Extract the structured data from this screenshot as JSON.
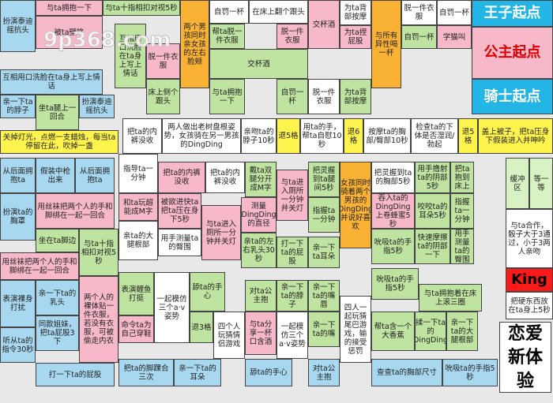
{
  "watermark": "9p368.com",
  "title": "恋爱新体验",
  "cells": [
    "扮演泰迪摇抗头",
    "与ta拥抱一下",
    "与ta十指相扣对视5秒",
    "被ta壁咚",
    "两个男孩同时亲女孩的左右脸颊",
    "自罚一杯",
    "在床上翻个跟头",
    "交杯酒",
    "为ta背部按摩",
    "与所有异性喝一杯",
    "脱一件衣服",
    "自罚一杯",
    "王子起点",
    "互相用口洗脸在ta身上写上情话",
    "脱一件衣服",
    "帮ta脱一件衣服",
    "脱一件衣服",
    "为ta捏屁股",
    "自罚一杯",
    "学猫叫",
    "公主起点",
    "交杯酒",
    "互相用口洗脸在ta身上写上情话",
    "扮演泰迪摇抗头",
    "床上侧个跟头",
    "与ta拥抱一下",
    "自罚一杯",
    "脱一件衣服",
    "为ta背部按摩",
    "骑士起点",
    "亲一下ta的脖子",
    "坐ta腿上一回合",
    "关掉灯光，点燃一支蜡烛，每当ta停留在此，吹掉一盏",
    "把ta的内裤没收",
    "两人做出老树盘根姿势，女孩骑在另一男孩的DingDing",
    "亲吻ta的脖子10秒",
    "退5格",
    "用ta的手，帮ta自慰10秒",
    "退6格",
    "按摩ta的胸部/臀部10秒",
    "检查ta的下体是否湿润/勃起",
    "退5格",
    "盖上被子，把ta压身下假装进入并呻吟",
    "从后面拥抱ta",
    "假装中枪出来",
    "从后面拥抱ta",
    "扮演ta的胸罩",
    "用丝袜把两个人的手和脚绑在一起一回合",
    "坐在ta脚边",
    "与ta十指相扣对视5秒",
    "用丝袜把两个人的手和脚绑在一起一回合",
    "表演裸身打扰",
    "亲一下ta的乳头",
    "两个人的裸体贴一件衣服，若没有衣服，可被偷走内衣",
    "同款姐妹，把ta屁股3下",
    "听从ta的指令30秒",
    "打一下ta的屁股",
    "指导ta一分钟",
    "和ta玩超能成M字",
    "亲ta的大腿根部",
    "把ta的内裤没收",
    "把ta的内裤没收",
    "戴ta双腿分开成M字",
    "与ta进入厕所一分钟并关灯",
    "把灵握到ta腿间5秒",
    "女孩同时骑着两个男孩的DingDing并说好喜欢",
    "把灵握到ta的胸部5秒",
    "用手撸射ta的阴部5秒",
    "把ta抱到床上",
    "被欲进快ta把ta压在身下5秒",
    "测量DingDing的直径",
    "指握ta一分钟",
    "吞入ta的DingDing上卷蜂蜜5秒",
    "咬咬ta的耳朵5秒",
    "指握ta一分钟",
    "用手测量ta的臀围",
    "与ta进入厕所一分钟并关灯",
    "亲ta的左右乳头30秒",
    "打一下ta的屁股",
    "亲一下ta耳朵",
    "吮吸ta的手指5秒",
    "快速摩擦ta的阴部一下",
    "用手测量ta的臀围",
    "表演鲤鱼打挺",
    "一起模仿三个a·v姿势",
    "舔ta的手心",
    "退3格",
    "四个人玩猜情侣游戏",
    "对ta公主抱",
    "亲一下ta的脖子",
    "亲一下ta的嘴唇",
    "四人一起玩猜尾巴游戏，输的接受惩罚",
    "吮吸ta的手指5秒",
    "与ta拥抱着在床上滚三圈",
    "与ta分享一杯口含酒",
    "一起模仿三个a·v姿势",
    "亲一下ta的嘴",
    "帮ta含一个大香蕉",
    "揉一下ta的DingDing",
    "亲一下ta的大腿根部",
    "命令ta为自己穿鞋",
    "把ta的脚踝合三次",
    "亲一下ta的耳朵",
    "舔ta的手心",
    "对ta公主抱",
    "查查ta的胸部尺寸",
    "吮吸ta的手指5秒",
    "缓冲区",
    "等一等",
    "与ta合作，骰子大于3通过，小于3两人亲吻",
    "King",
    "把硬东西放在ta身上5秒"
  ]
}
